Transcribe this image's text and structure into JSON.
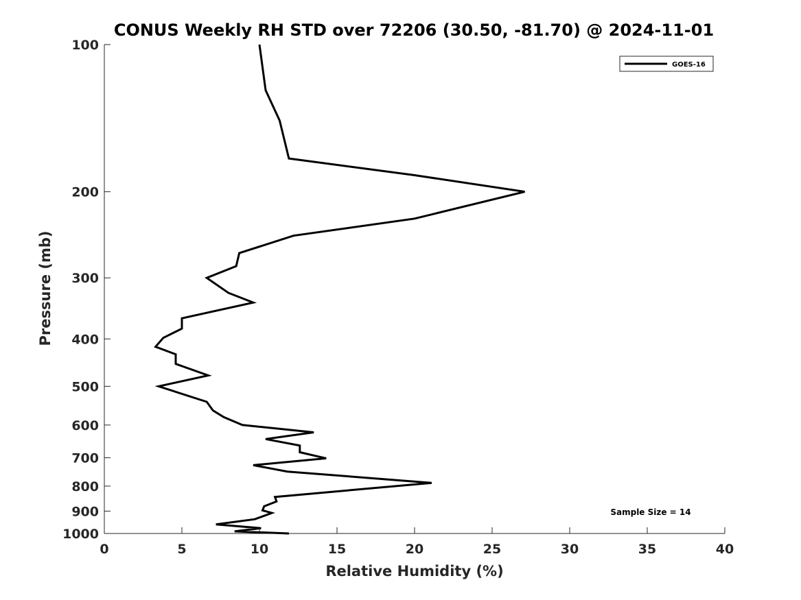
{
  "chart_data": {
    "type": "line",
    "title": "CONUS Weekly RH STD over 72206 (30.50, -81.70) @ 2024-11-01",
    "xlabel": "Relative Humidity (%)",
    "ylabel": "Pressure (mb)",
    "xlim": [
      0,
      40
    ],
    "ylim": [
      1000,
      100
    ],
    "yscale": "log",
    "y_reversed": true,
    "grid": false,
    "legend_position": "top-right",
    "x_ticks": [
      "0",
      "5",
      "10",
      "15",
      "20",
      "25",
      "30",
      "35",
      "40"
    ],
    "y_ticks": [
      "100",
      "200",
      "300",
      "400",
      "500",
      "600",
      "700",
      "800",
      "900",
      "1000"
    ],
    "series": [
      {
        "name": "GOES-16",
        "color": "#000000",
        "x": [
          10.0,
          10.4,
          11.3,
          11.9,
          20.0,
          27.1,
          20.0,
          12.2,
          8.7,
          8.5,
          6.6,
          8.0,
          9.6,
          5.0,
          5.0,
          3.8,
          3.3,
          4.6,
          4.6,
          6.7,
          3.5,
          6.6,
          7.0,
          7.7,
          8.9,
          13.5,
          10.4,
          12.6,
          12.6,
          14.3,
          9.6,
          11.8,
          21.1,
          11.0,
          11.1,
          10.3,
          10.2,
          10.8,
          9.7,
          7.2,
          10.1,
          8.4,
          11.9
        ],
        "y": [
          100,
          124,
          143,
          171,
          185,
          200,
          227,
          246,
          267,
          284,
          300,
          322,
          337,
          363,
          381,
          398,
          415,
          430,
          450,
          475,
          500,
          538,
          560,
          578,
          600,
          621,
          641,
          661,
          682,
          702,
          725,
          747,
          788,
          842,
          860,
          880,
          897,
          908,
          935,
          958,
          975,
          990,
          1000
        ]
      }
    ],
    "annotations": [
      {
        "text": "Sample Size = 14",
        "position": "bottom-right"
      }
    ]
  }
}
